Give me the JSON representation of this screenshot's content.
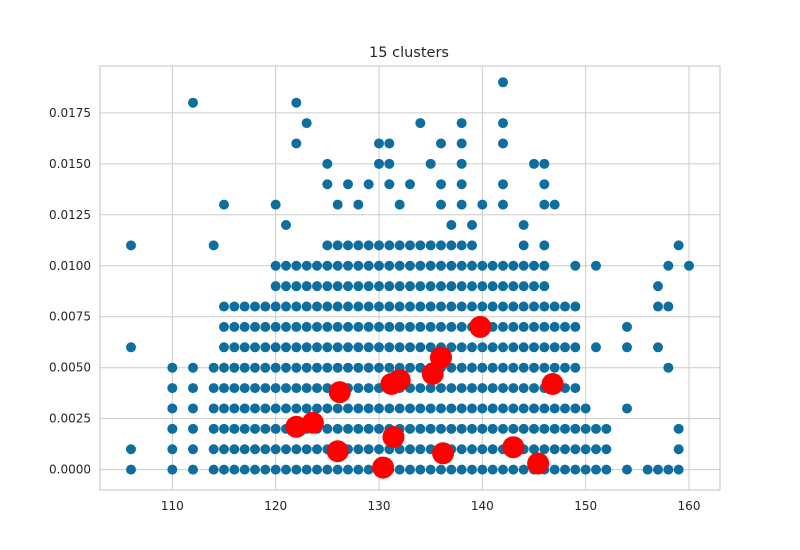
{
  "chart_data": {
    "type": "scatter",
    "title": "15 clusters",
    "xlabel": "",
    "ylabel": "",
    "xlim": [
      103,
      163
    ],
    "ylim": [
      -0.001,
      0.0198
    ],
    "x_ticks": [
      110,
      120,
      130,
      140,
      150,
      160
    ],
    "x_tick_labels": [
      "110",
      "120",
      "130",
      "140",
      "150",
      "160"
    ],
    "y_ticks": [
      0.0,
      0.0025,
      0.005,
      0.0075,
      0.01,
      0.0125,
      0.015,
      0.0175
    ],
    "y_tick_labels": [
      "0.0000",
      "0.0025",
      "0.0050",
      "0.0075",
      "0.0100",
      "0.0125",
      "0.0150",
      "0.0175"
    ],
    "grid": true,
    "colors": {
      "points": "#0e6f9e",
      "centers": "#ff0000",
      "grid": "#cccccc",
      "axes": "#cccccc",
      "background": "#ffffff"
    },
    "series": [
      {
        "role": "data points",
        "x_grid": [
          106,
          110,
          112,
          114,
          115,
          116,
          117,
          118,
          119,
          120,
          121,
          122,
          123,
          124,
          125,
          126,
          127,
          128,
          129,
          130,
          131,
          132,
          133,
          134,
          135,
          136,
          137,
          138,
          139,
          140,
          141,
          142,
          143,
          144,
          145,
          146,
          147,
          148,
          149,
          150,
          151,
          152,
          154,
          156,
          157,
          158,
          159
        ],
        "y_grid": [
          0.0,
          0.001,
          0.002,
          0.003,
          0.004,
          0.005,
          0.006,
          0.007,
          0.008,
          0.009,
          0.01,
          0.011
        ],
        "extra_points": [
          [
            106,
            0.011
          ],
          [
            112,
            0.018
          ],
          [
            122,
            0.018
          ],
          [
            122,
            0.016
          ],
          [
            123,
            0.017
          ],
          [
            115,
            0.013
          ],
          [
            114,
            0.011
          ],
          [
            120,
            0.013
          ],
          [
            121,
            0.012
          ],
          [
            125,
            0.015
          ],
          [
            125,
            0.014
          ],
          [
            127,
            0.014
          ],
          [
            126,
            0.013
          ],
          [
            128,
            0.013
          ],
          [
            129,
            0.014
          ],
          [
            130,
            0.016
          ],
          [
            130,
            0.015
          ],
          [
            131,
            0.016
          ],
          [
            131,
            0.015
          ],
          [
            131,
            0.014
          ],
          [
            132,
            0.013
          ],
          [
            133,
            0.014
          ],
          [
            134,
            0.017
          ],
          [
            135,
            0.015
          ],
          [
            136,
            0.016
          ],
          [
            136,
            0.014
          ],
          [
            136,
            0.013
          ],
          [
            137,
            0.012
          ],
          [
            138,
            0.017
          ],
          [
            138,
            0.016
          ],
          [
            138,
            0.015
          ],
          [
            138,
            0.014
          ],
          [
            138,
            0.013
          ],
          [
            139,
            0.012
          ],
          [
            140,
            0.013
          ],
          [
            142,
            0.019
          ],
          [
            142,
            0.017
          ],
          [
            142,
            0.016
          ],
          [
            142,
            0.014
          ],
          [
            142,
            0.013
          ],
          [
            144,
            0.012
          ],
          [
            145,
            0.015
          ],
          [
            146,
            0.015
          ],
          [
            146,
            0.014
          ],
          [
            146,
            0.013
          ],
          [
            147,
            0.013
          ],
          [
            146,
            0.011
          ],
          [
            144,
            0.011
          ],
          [
            149,
            0.01
          ],
          [
            151,
            0.01
          ],
          [
            154,
            0.007
          ],
          [
            154,
            0.006
          ],
          [
            157,
            0.006
          ],
          [
            157,
            0.009
          ],
          [
            157,
            0.008
          ],
          [
            158,
            0.01
          ],
          [
            158,
            0.008
          ],
          [
            159,
            0.011
          ],
          [
            160,
            0.01
          ],
          [
            158,
            0.005
          ],
          [
            159,
            0.002
          ],
          [
            159,
            0.001
          ],
          [
            154,
            0.003
          ],
          [
            151,
            0.006
          ],
          [
            150,
            0.003
          ],
          [
            152,
            0.002
          ],
          [
            106,
            0.006
          ]
        ]
      },
      {
        "role": "cluster centers",
        "points": [
          [
            139.8,
            0.007
          ],
          [
            136.0,
            0.0055
          ],
          [
            135.2,
            0.0047
          ],
          [
            132.0,
            0.0044
          ],
          [
            131.2,
            0.0042
          ],
          [
            146.8,
            0.0042
          ],
          [
            126.2,
            0.0038
          ],
          [
            123.6,
            0.0023
          ],
          [
            122.0,
            0.0021
          ],
          [
            131.4,
            0.0016
          ],
          [
            143.0,
            0.0011
          ],
          [
            126.0,
            0.0009
          ],
          [
            136.2,
            0.0008
          ],
          [
            145.4,
            0.0003
          ],
          [
            130.4,
            0.0001
          ]
        ]
      }
    ]
  }
}
